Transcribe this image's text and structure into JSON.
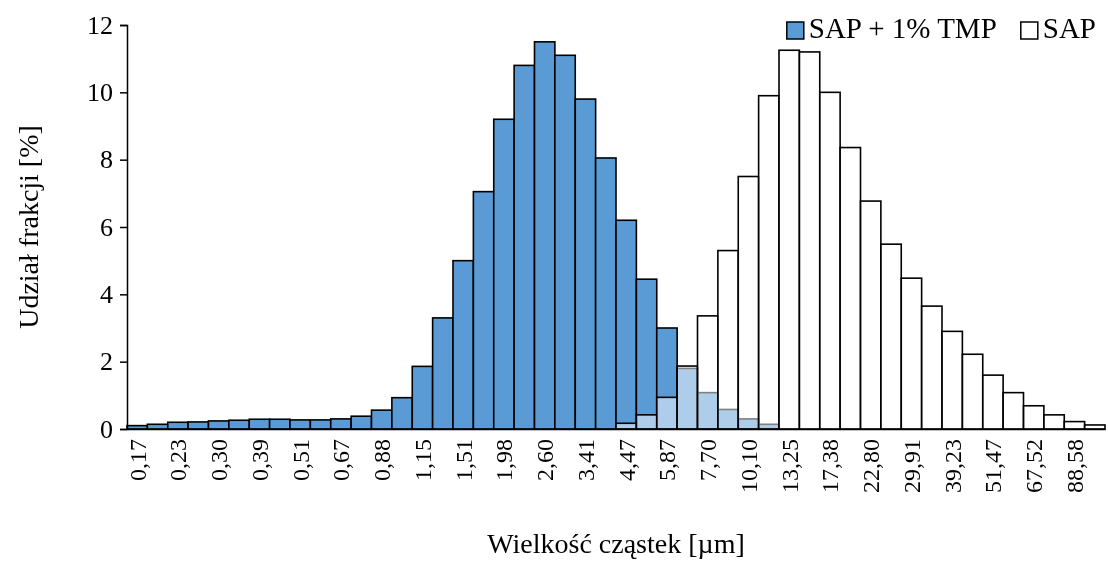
{
  "chart_data": {
    "type": "bar",
    "xlabel": "Wielkość cząstek [µm]",
    "ylabel": "Udział frakcji [%]",
    "categories": [
      "0,17",
      null,
      "0,23",
      null,
      "0,30",
      null,
      "0,39",
      null,
      "0,51",
      null,
      "0,67",
      null,
      "0,88",
      null,
      "1,15",
      null,
      "1,51",
      null,
      "1,98",
      null,
      "2,60",
      null,
      "3,41",
      null,
      "4,47",
      null,
      "5,87",
      null,
      "7,70",
      null,
      "10,10",
      null,
      "13,25",
      null,
      "17,38",
      null,
      "22,80",
      null,
      "29,91",
      null,
      "39,23",
      null,
      "51,47",
      null,
      "67,52",
      null,
      "88,58",
      null
    ],
    "series": [
      {
        "name": "SAP + 1% TMP",
        "color": "#5b9bd5",
        "values": [
          0.1,
          0.14,
          0.2,
          0.21,
          0.24,
          0.26,
          0.29,
          0.29,
          0.27,
          0.27,
          0.3,
          0.38,
          0.56,
          0.93,
          1.86,
          3.3,
          5.0,
          7.05,
          9.2,
          10.8,
          11.5,
          11.1,
          9.8,
          8.05,
          6.2,
          4.45,
          3.0,
          1.8,
          1.08,
          0.58,
          0.3,
          0.14,
          null,
          null,
          null,
          null,
          null,
          null,
          null,
          null,
          null,
          null,
          null,
          null,
          null,
          null,
          null,
          null
        ]
      },
      {
        "name": "SAP",
        "color": "#ffffff",
        "values": [
          null,
          null,
          null,
          null,
          null,
          null,
          null,
          null,
          null,
          null,
          null,
          null,
          null,
          null,
          null,
          null,
          null,
          null,
          null,
          null,
          null,
          null,
          null,
          null,
          0.17,
          0.42,
          0.94,
          1.87,
          3.36,
          5.3,
          7.5,
          9.9,
          11.25,
          11.2,
          10.0,
          8.36,
          6.77,
          5.49,
          4.48,
          3.65,
          2.9,
          2.22,
          1.6,
          1.08,
          0.69,
          0.42,
          0.22,
          0.12
        ]
      }
    ],
    "ylim": [
      0,
      12
    ],
    "yticks": [
      0,
      2,
      4,
      6,
      8,
      10,
      12
    ],
    "legend": "top right",
    "grid": false
  }
}
